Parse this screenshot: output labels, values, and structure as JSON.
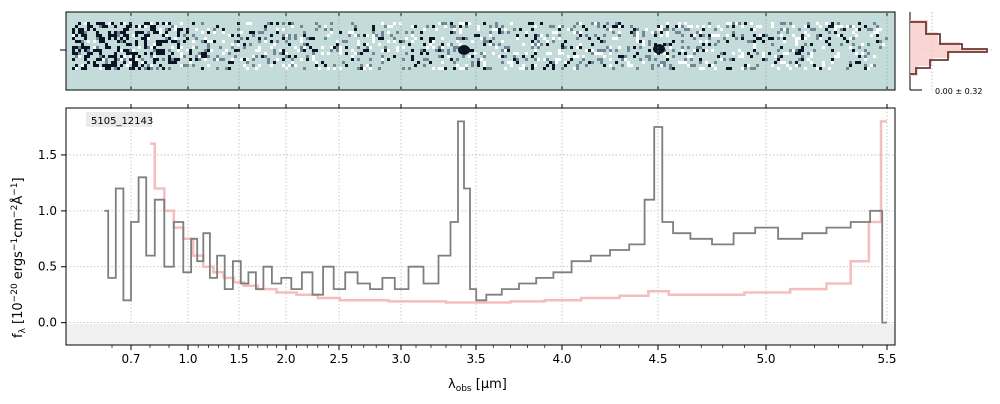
{
  "chart_data": {
    "type": "line",
    "object_id": "5105_12143",
    "xlabel": "λ",
    "xlabel_sub": "obs",
    "xlabel_unit": "[μm]",
    "ylabel": "f_λ [10^-20 ergs^-1cm^-2Å^-1]",
    "ylabel_parts": {
      "base": "f",
      "sub": "λ",
      "bracket_open": "[10",
      "exp1": "−20",
      "mid1": " ergs",
      "exp2": "−1",
      "mid2": "cm",
      "exp3": "−2",
      "mid3": "Å",
      "exp4": "−1",
      "bracket_close": "]"
    },
    "ylim": [
      -0.2,
      1.92
    ],
    "y_ticks": [
      "0.0",
      "0.5",
      "1.0",
      "1.5"
    ],
    "y_tick_values": [
      0.0,
      0.5,
      1.0,
      1.5
    ],
    "x_ticks": [
      "0.7",
      "1.0",
      "1.5",
      "2.0",
      "2.5",
      "3.0",
      "3.5",
      "4.0",
      "4.5",
      "5.0",
      "5.5"
    ],
    "x_tick_values": [
      0.7,
      1.0,
      1.5,
      2.0,
      2.5,
      3.0,
      3.5,
      4.0,
      4.5,
      5.0,
      5.5
    ],
    "xlim": [
      0.5,
      5.53
    ],
    "grid": true,
    "series": [
      {
        "role": "spectrum",
        "color": "#7f7f7f",
        "x": [
          0.56,
          0.6,
          0.64,
          0.68,
          0.72,
          0.76,
          0.8,
          0.85,
          0.9,
          0.95,
          1.0,
          1.06,
          1.12,
          1.18,
          1.25,
          1.32,
          1.4,
          1.48,
          1.56,
          1.64,
          1.72,
          1.8,
          1.9,
          2.0,
          2.1,
          2.2,
          2.3,
          2.4,
          2.5,
          2.6,
          2.7,
          2.8,
          2.9,
          3.0,
          3.1,
          3.2,
          3.3,
          3.36,
          3.4,
          3.44,
          3.48,
          3.52,
          3.6,
          3.7,
          3.8,
          3.9,
          4.0,
          4.1,
          4.2,
          4.3,
          4.4,
          4.46,
          4.5,
          4.54,
          4.6,
          4.7,
          4.8,
          4.9,
          5.0,
          5.1,
          5.2,
          5.3,
          5.4,
          5.46,
          5.5
        ],
        "y": [
          1.0,
          0.4,
          1.2,
          0.2,
          0.9,
          1.3,
          0.6,
          1.1,
          0.5,
          0.9,
          0.45,
          0.75,
          0.55,
          0.8,
          0.4,
          0.6,
          0.3,
          0.55,
          0.35,
          0.45,
          0.3,
          0.5,
          0.35,
          0.4,
          0.3,
          0.45,
          0.25,
          0.5,
          0.3,
          0.45,
          0.35,
          0.3,
          0.4,
          0.3,
          0.5,
          0.35,
          0.6,
          0.9,
          1.8,
          1.2,
          0.3,
          0.2,
          0.25,
          0.3,
          0.35,
          0.4,
          0.45,
          0.55,
          0.6,
          0.65,
          0.7,
          1.1,
          1.75,
          0.9,
          0.8,
          0.75,
          0.7,
          0.8,
          0.85,
          0.75,
          0.8,
          0.85,
          0.9,
          1.0,
          0.0
        ]
      },
      {
        "role": "model",
        "color": "#f4b6b6",
        "x": [
          0.8,
          0.85,
          0.9,
          0.95,
          1.0,
          1.1,
          1.2,
          1.3,
          1.4,
          1.5,
          1.6,
          1.8,
          2.0,
          2.2,
          2.4,
          2.6,
          2.8,
          3.0,
          3.2,
          3.4,
          3.6,
          3.8,
          4.0,
          4.2,
          4.4,
          4.5,
          4.6,
          4.8,
          5.0,
          5.2,
          5.3,
          5.4,
          5.45,
          5.5
        ],
        "y": [
          1.6,
          1.2,
          1.0,
          0.85,
          0.75,
          0.6,
          0.5,
          0.45,
          0.4,
          0.36,
          0.33,
          0.3,
          0.27,
          0.25,
          0.22,
          0.2,
          0.2,
          0.19,
          0.19,
          0.18,
          0.18,
          0.19,
          0.2,
          0.22,
          0.24,
          0.28,
          0.25,
          0.25,
          0.27,
          0.3,
          0.35,
          0.55,
          0.9,
          1.8
        ]
      }
    ],
    "side_panel_label": "0.00 ± 0.32"
  }
}
